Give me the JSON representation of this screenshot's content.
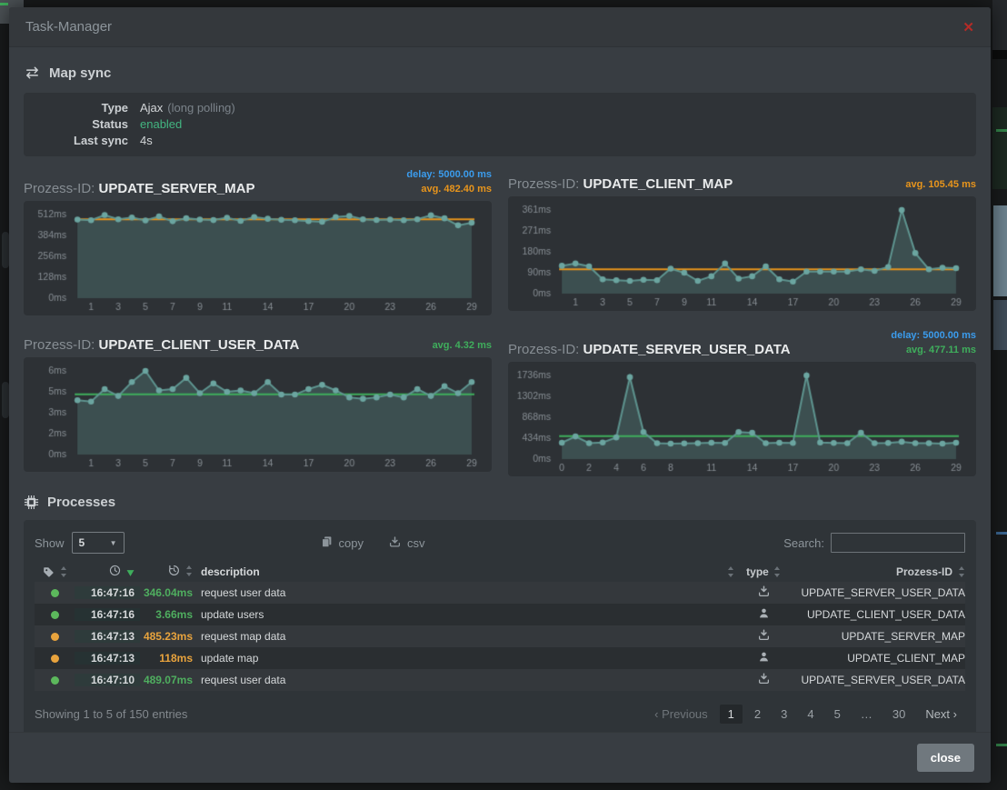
{
  "modal": {
    "title": "Task-Manager",
    "close_glyph": "✕"
  },
  "map_sync": {
    "heading": "Map sync",
    "rows": [
      {
        "label": "Type",
        "value": "Ajax",
        "suffix": "(long polling)"
      },
      {
        "label": "Status",
        "value": "enabled"
      },
      {
        "label": "Last sync",
        "value": "4s"
      }
    ]
  },
  "charts": {
    "prefix": "Prozess-ID:"
  },
  "chart_data": [
    {
      "type": "area",
      "name": "UPDATE_SERVER_MAP",
      "delay_label": "delay: 5000.00 ms",
      "avg_label": "avg. 482.40 ms",
      "avg_value": 482.4,
      "avg_color": "#e8951c",
      "delay_color": "#3b9ced",
      "ymax": 512,
      "yticks": [
        {
          "v": 0,
          "label": "0ms"
        },
        {
          "v": 128,
          "label": "128ms"
        },
        {
          "v": 256,
          "label": "256ms"
        },
        {
          "v": 384,
          "label": "384ms"
        },
        {
          "v": 512,
          "label": "512ms"
        }
      ],
      "xticks": [
        {
          "i": 1,
          "label": "1"
        },
        {
          "i": 3,
          "label": "3"
        },
        {
          "i": 5,
          "label": "5"
        },
        {
          "i": 7,
          "label": "7"
        },
        {
          "i": 9,
          "label": "9"
        },
        {
          "i": 11,
          "label": "11"
        },
        {
          "i": 14,
          "label": "14"
        },
        {
          "i": 17,
          "label": "17"
        },
        {
          "i": 20,
          "label": "20"
        },
        {
          "i": 23,
          "label": "23"
        },
        {
          "i": 26,
          "label": "26"
        },
        {
          "i": 29,
          "label": "29"
        }
      ],
      "values": [
        481,
        477,
        509,
        483,
        494,
        476,
        501,
        471,
        489,
        481,
        478,
        492,
        473,
        497,
        486,
        480,
        477,
        472,
        468,
        497,
        503,
        483,
        479,
        481,
        477,
        483,
        507,
        489,
        446,
        462
      ]
    },
    {
      "type": "area",
      "name": "UPDATE_CLIENT_MAP",
      "delay_label": "",
      "avg_label": "avg. 105.45 ms",
      "avg_value": 105.45,
      "avg_color": "#e8951c",
      "delay_color": "#3b9ced",
      "ymax": 361,
      "yticks": [
        {
          "v": 0,
          "label": "0ms"
        },
        {
          "v": 90,
          "label": "90ms"
        },
        {
          "v": 180,
          "label": "180ms"
        },
        {
          "v": 271,
          "label": "271ms"
        },
        {
          "v": 361,
          "label": "361ms"
        }
      ],
      "xticks": [
        {
          "i": 1,
          "label": "1"
        },
        {
          "i": 3,
          "label": "3"
        },
        {
          "i": 5,
          "label": "5"
        },
        {
          "i": 7,
          "label": "7"
        },
        {
          "i": 9,
          "label": "9"
        },
        {
          "i": 11,
          "label": "11"
        },
        {
          "i": 14,
          "label": "14"
        },
        {
          "i": 17,
          "label": "17"
        },
        {
          "i": 20,
          "label": "20"
        },
        {
          "i": 23,
          "label": "23"
        },
        {
          "i": 26,
          "label": "26"
        },
        {
          "i": 29,
          "label": "29"
        }
      ],
      "values": [
        120,
        130,
        118,
        62,
        58,
        55,
        60,
        58,
        108,
        90,
        55,
        75,
        130,
        65,
        75,
        118,
        62,
        52,
        95,
        95,
        95,
        95,
        105,
        98,
        115,
        361,
        175,
        105,
        112,
        110
      ]
    },
    {
      "type": "area",
      "name": "UPDATE_CLIENT_USER_DATA",
      "delay_label": "",
      "avg_label": "avg. 4.32 ms",
      "avg_value": 4.32,
      "avg_color": "#3fae5c",
      "delay_color": "#3b9ced",
      "ymax": 6,
      "yticks": [
        {
          "v": 0,
          "label": "0ms"
        },
        {
          "v": 1.5,
          "label": "2ms"
        },
        {
          "v": 3,
          "label": "3ms"
        },
        {
          "v": 4.5,
          "label": "5ms"
        },
        {
          "v": 6,
          "label": "6ms"
        }
      ],
      "xticks": [
        {
          "i": 1,
          "label": "1"
        },
        {
          "i": 3,
          "label": "3"
        },
        {
          "i": 5,
          "label": "5"
        },
        {
          "i": 7,
          "label": "7"
        },
        {
          "i": 9,
          "label": "9"
        },
        {
          "i": 11,
          "label": "11"
        },
        {
          "i": 14,
          "label": "14"
        },
        {
          "i": 17,
          "label": "17"
        },
        {
          "i": 20,
          "label": "20"
        },
        {
          "i": 23,
          "label": "23"
        },
        {
          "i": 26,
          "label": "26"
        },
        {
          "i": 29,
          "label": "29"
        }
      ],
      "values": [
        3.9,
        3.8,
        4.7,
        4.2,
        5.2,
        6.0,
        4.6,
        4.7,
        5.5,
        4.4,
        5.1,
        4.5,
        4.6,
        4.4,
        5.2,
        4.3,
        4.3,
        4.7,
        5.0,
        4.6,
        4.1,
        4.0,
        4.1,
        4.3,
        4.1,
        4.7,
        4.2,
        4.9,
        4.4,
        5.2
      ]
    },
    {
      "type": "area",
      "name": "UPDATE_SERVER_USER_DATA",
      "delay_label": "delay: 5000.00 ms",
      "avg_label": "avg. 477.11 ms",
      "avg_value": 477.11,
      "avg_color": "#3fae5c",
      "delay_color": "#3b9ced",
      "ymax": 1736,
      "yticks": [
        {
          "v": 0,
          "label": "0ms"
        },
        {
          "v": 434,
          "label": "434ms"
        },
        {
          "v": 868,
          "label": "868ms"
        },
        {
          "v": 1302,
          "label": "1302ms"
        },
        {
          "v": 1736,
          "label": "1736ms"
        }
      ],
      "xticks": [
        {
          "i": 0,
          "label": "0"
        },
        {
          "i": 2,
          "label": "2"
        },
        {
          "i": 4,
          "label": "4"
        },
        {
          "i": 6,
          "label": "6"
        },
        {
          "i": 8,
          "label": "8"
        },
        {
          "i": 11,
          "label": "11"
        },
        {
          "i": 14,
          "label": "14"
        },
        {
          "i": 17,
          "label": "17"
        },
        {
          "i": 20,
          "label": "20"
        },
        {
          "i": 23,
          "label": "23"
        },
        {
          "i": 26,
          "label": "26"
        },
        {
          "i": 29,
          "label": "29"
        }
      ],
      "values": [
        340,
        470,
        330,
        345,
        450,
        1700,
        560,
        330,
        320,
        325,
        330,
        340,
        335,
        560,
        545,
        330,
        340,
        335,
        1736,
        345,
        335,
        330,
        545,
        330,
        335,
        360,
        330,
        330,
        320,
        340
      ]
    }
  ],
  "processes": {
    "heading": "Processes",
    "controls": {
      "show_label": "Show",
      "show_value": "5",
      "copy_label": "copy",
      "csv_label": "csv",
      "search_label": "Search:"
    },
    "table": {
      "header": {
        "description": "description",
        "type": "type",
        "prozess_id": "Prozess-ID"
      },
      "rows": [
        {
          "status": "#5cb85c",
          "time": "16:47:16",
          "duration": "346.04ms",
          "duration_color": "#4fae5f",
          "description": "request user data",
          "type": "server",
          "prozess_id": "UPDATE_SERVER_USER_DATA"
        },
        {
          "status": "#5cb85c",
          "time": "16:47:16",
          "duration": "3.66ms",
          "duration_color": "#4fae5f",
          "description": "update users",
          "type": "client",
          "prozess_id": "UPDATE_CLIENT_USER_DATA"
        },
        {
          "status": "#e8a33d",
          "time": "16:47:13",
          "duration": "485.23ms",
          "duration_color": "#e8a33d",
          "description": "request map data",
          "type": "server",
          "prozess_id": "UPDATE_SERVER_MAP"
        },
        {
          "status": "#e8a33d",
          "time": "16:47:13",
          "duration": "118ms",
          "duration_color": "#e8a33d",
          "description": "update map",
          "type": "client",
          "prozess_id": "UPDATE_CLIENT_MAP"
        },
        {
          "status": "#5cb85c",
          "time": "16:47:10",
          "duration": "489.07ms",
          "duration_color": "#4fae5f",
          "description": "request user data",
          "type": "server",
          "prozess_id": "UPDATE_SERVER_USER_DATA"
        }
      ]
    },
    "footer_info": "Showing 1 to 5 of 150 entries",
    "pagination": {
      "previous": "Previous",
      "pages": [
        "1",
        "2",
        "3",
        "4",
        "5",
        "…",
        "30"
      ],
      "active": "1",
      "next": "Next"
    }
  },
  "footer": {
    "close_label": "close"
  },
  "colors": {
    "status_green": "#5cb85c",
    "status_orange": "#e8a33d",
    "avg_orange": "#e8951c",
    "avg_green": "#3fae5c",
    "delay_blue": "#3b9ced",
    "chart_line": "#5e948f",
    "chart_dot": "#6ba5a0"
  }
}
